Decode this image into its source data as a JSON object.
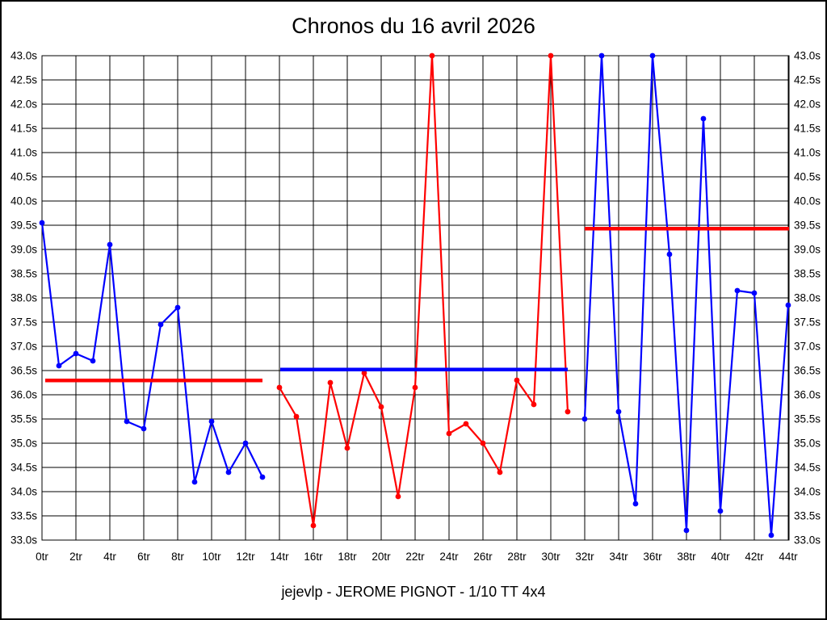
{
  "page": {
    "title": "Chronos du 16 avril 2026",
    "footer": "jejevlp - JEROME PIGNOT - 1/10 TT 4x4"
  },
  "chart_data": {
    "type": "line",
    "title": "Chronos du 16 avril 2026",
    "subtitle": "jejevlp - JEROME PIGNOT - 1/10 TT 4x4",
    "x_unit": "tr",
    "y_unit": "s",
    "xlim": [
      0,
      44.05
    ],
    "ylim": [
      33.0,
      43.0
    ],
    "x_tick_step": 2,
    "y_tick_step": 0.5,
    "grid": true,
    "legend": "none",
    "colors": {
      "blue": "#0000ff",
      "red": "#ff0000",
      "grid": "#000000",
      "background": "#ffffff"
    },
    "x_tick_labels": [
      "0tr",
      "2tr",
      "4tr",
      "6tr",
      "8tr",
      "10tr",
      "12tr",
      "14tr",
      "16tr",
      "18tr",
      "20tr",
      "22tr",
      "24tr",
      "26tr",
      "28tr",
      "30tr",
      "32tr",
      "34tr",
      "36tr",
      "38tr",
      "40tr",
      "42tr",
      "44tr"
    ],
    "y_tick_labels": [
      "43.0s",
      "42.5s",
      "42.0s",
      "41.5s",
      "41.0s",
      "40.5s",
      "40.0s",
      "39.5s",
      "39.0s",
      "38.5s",
      "38.0s",
      "37.5s",
      "37.0s",
      "36.5s",
      "36.0s",
      "35.5s",
      "35.0s",
      "34.5s",
      "34.0s",
      "33.5s",
      "33.0s"
    ],
    "series": [
      {
        "name": "run-1-blue",
        "color": "#0000ff",
        "laps": [
          0,
          1,
          2,
          3,
          4,
          5,
          6,
          7,
          8,
          9,
          10,
          11,
          12,
          13
        ],
        "values": [
          39.55,
          36.6,
          36.85,
          36.7,
          39.1,
          35.45,
          35.3,
          37.45,
          37.8,
          34.2,
          35.45,
          34.4,
          35.0,
          34.3
        ]
      },
      {
        "name": "run-2-red",
        "color": "#ff0000",
        "laps": [
          14,
          15,
          16,
          17,
          18,
          19,
          20,
          21,
          22,
          23,
          24,
          25,
          26,
          27,
          28,
          29,
          30,
          31
        ],
        "values": [
          36.15,
          35.55,
          33.3,
          36.25,
          34.9,
          36.45,
          35.75,
          33.9,
          36.15,
          43.0,
          35.2,
          35.4,
          35.0,
          34.4,
          36.3,
          35.8,
          43.0,
          35.65
        ]
      },
      {
        "name": "run-3-blue",
        "color": "#0000ff",
        "laps": [
          32,
          33,
          34,
          35,
          36,
          37,
          38,
          39,
          40,
          41,
          42,
          43,
          44
        ],
        "values": [
          35.5,
          43.0,
          35.65,
          33.75,
          43.0,
          38.9,
          33.2,
          41.7,
          33.6,
          38.15,
          38.1,
          33.1,
          37.85
        ]
      }
    ],
    "average_lines": [
      {
        "name": "avg-run-1",
        "color": "#ff0000",
        "value": 36.3,
        "from_lap": 0.2,
        "to_lap": 13.0
      },
      {
        "name": "avg-run-2",
        "color": "#0000ff",
        "value": 36.52,
        "from_lap": 14.05,
        "to_lap": 31.0
      },
      {
        "name": "avg-run-3",
        "color": "#ff0000",
        "value": 39.43,
        "from_lap": 32.0,
        "to_lap": 44.05
      }
    ]
  }
}
